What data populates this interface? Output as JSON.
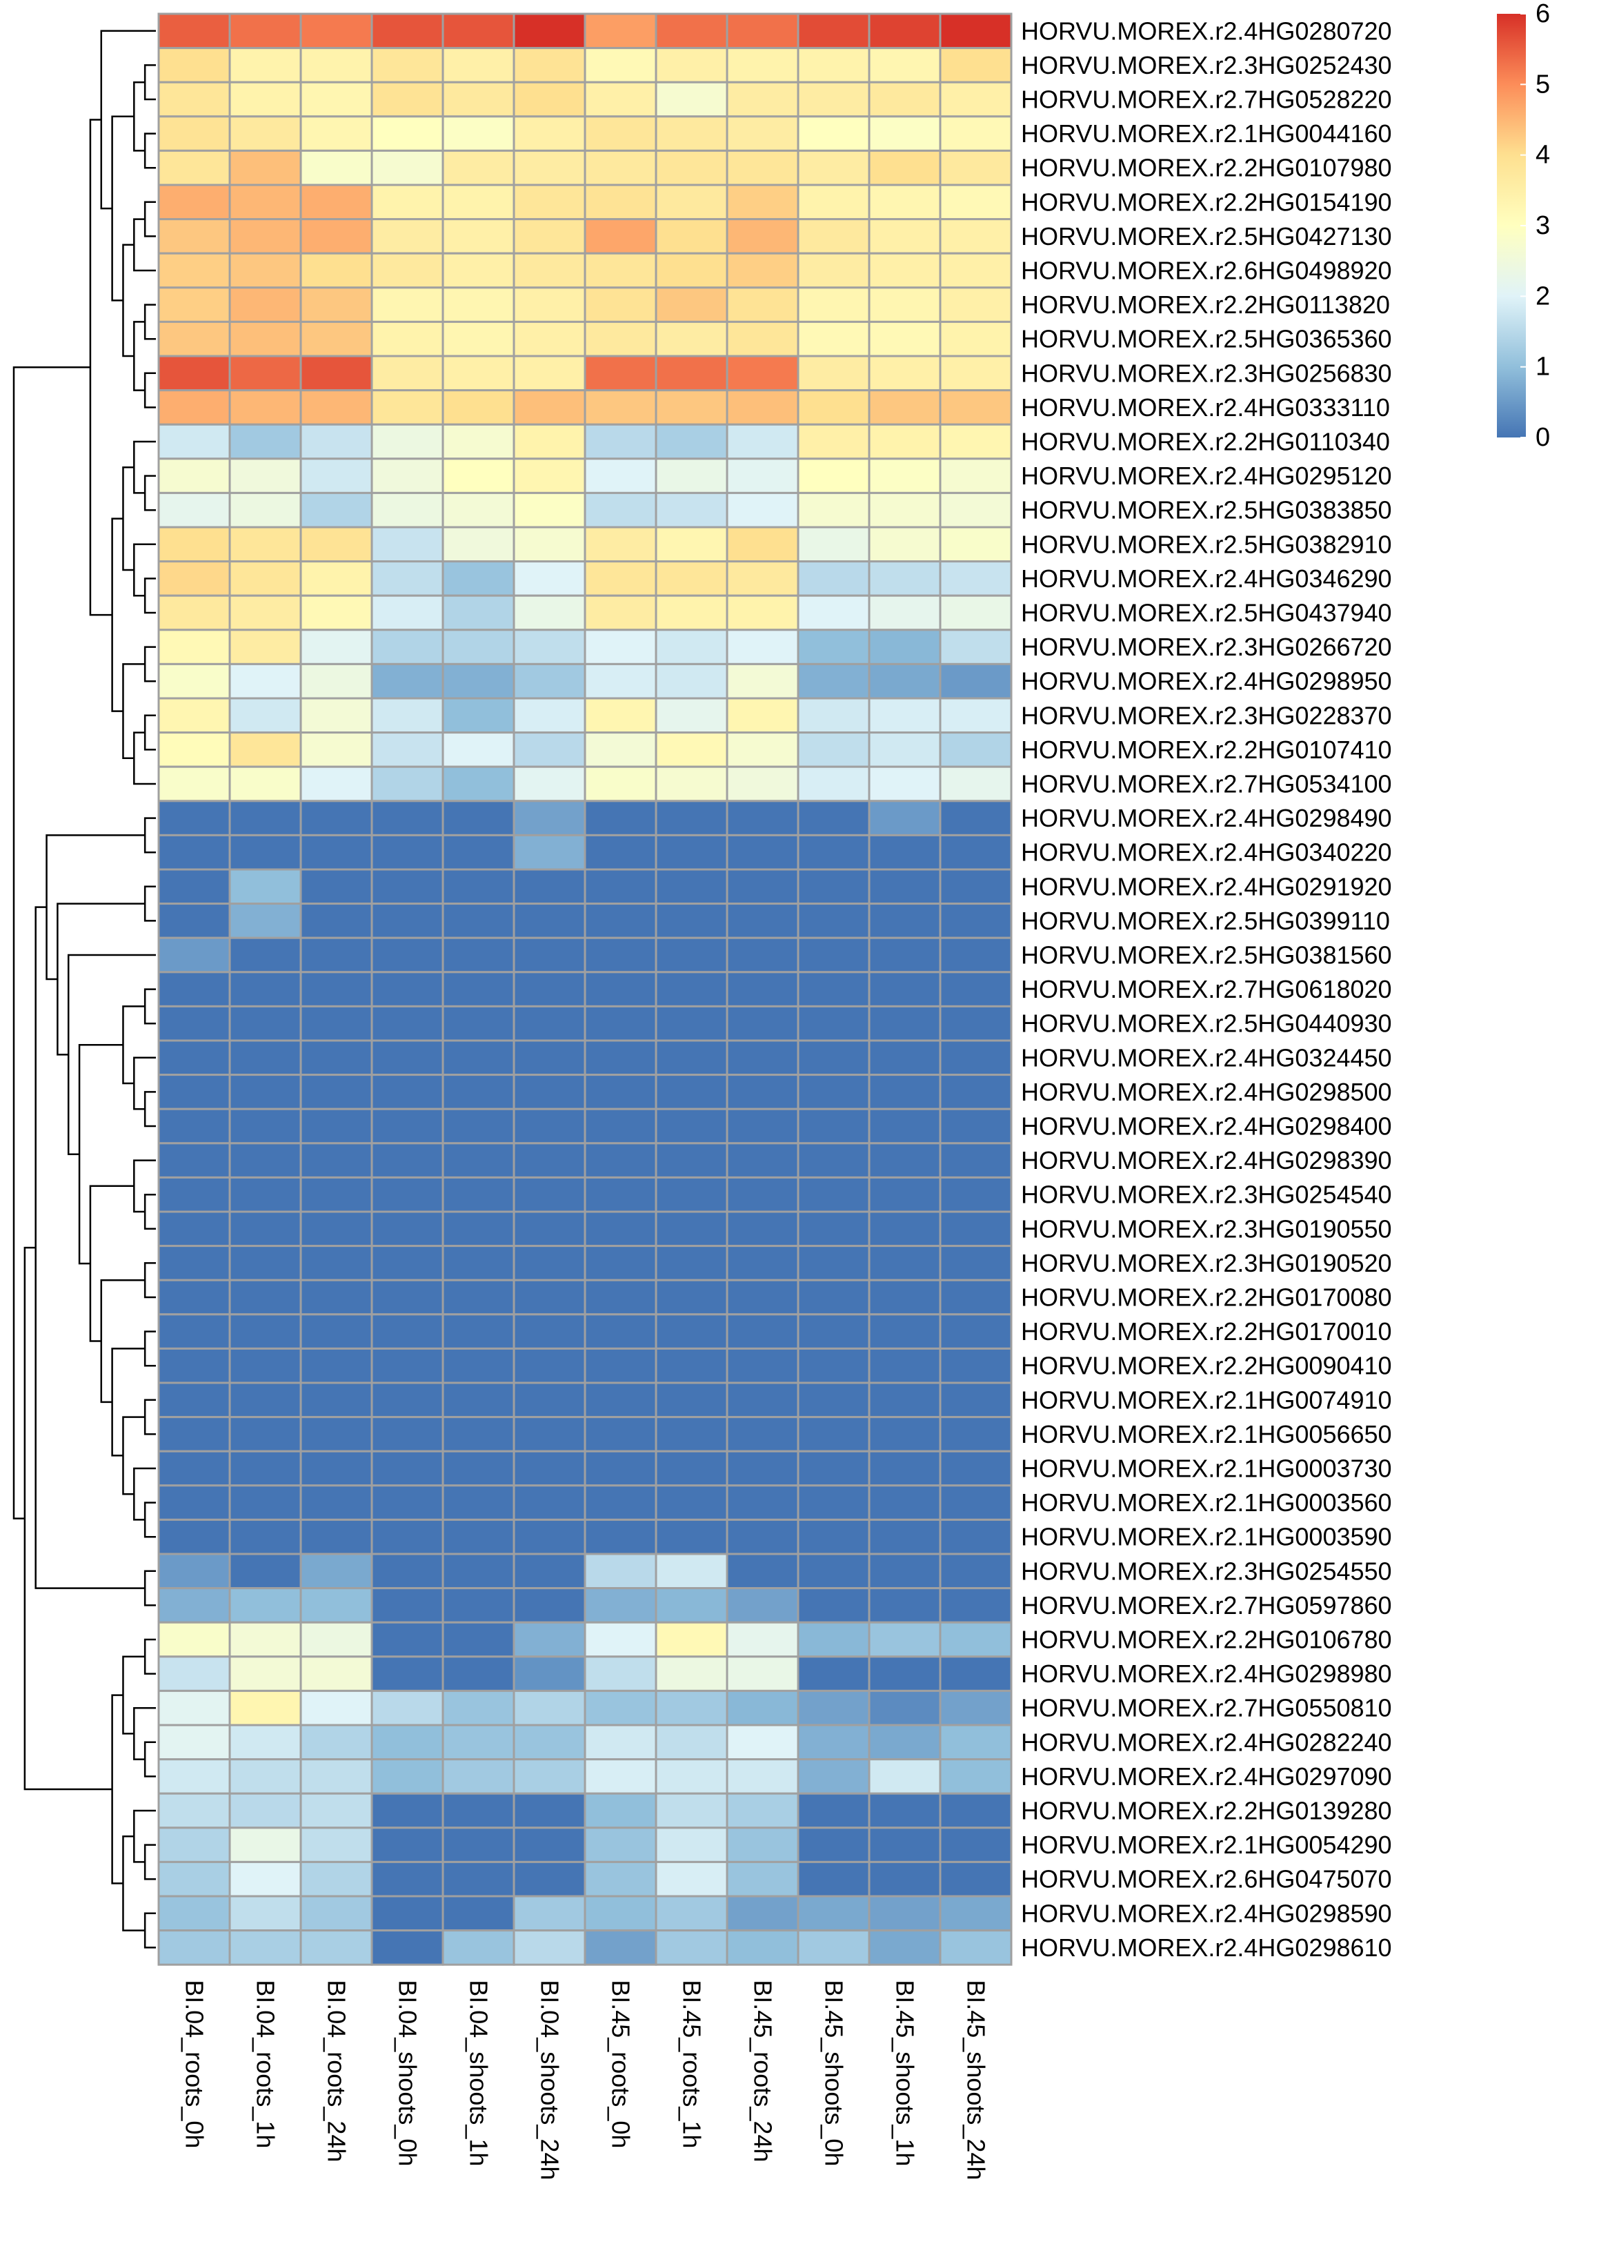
{
  "chart_data": {
    "type": "heatmap",
    "title": "",
    "columns": [
      "BI.04_roots_0h",
      "BI.04_roots_1h",
      "BI.04_roots_24h",
      "BI.04_shoots_0h",
      "BI.04_shoots_1h",
      "BI.04_shoots_24h",
      "BI.45_roots_0h",
      "BI.45_roots_1h",
      "BI.45_roots_24h",
      "BI.45_shoots_0h",
      "BI.45_shoots_1h",
      "BI.45_shoots_24h"
    ],
    "rows": [
      "HORVU.MOREX.r2.4HG0280720",
      "HORVU.MOREX.r2.3HG0252430",
      "HORVU.MOREX.r2.7HG0528220",
      "HORVU.MOREX.r2.1HG0044160",
      "HORVU.MOREX.r2.2HG0107980",
      "HORVU.MOREX.r2.2HG0154190",
      "HORVU.MOREX.r2.5HG0427130",
      "HORVU.MOREX.r2.6HG0498920",
      "HORVU.MOREX.r2.2HG0113820",
      "HORVU.MOREX.r2.5HG0365360",
      "HORVU.MOREX.r2.3HG0256830",
      "HORVU.MOREX.r2.4HG0333110",
      "HORVU.MOREX.r2.2HG0110340",
      "HORVU.MOREX.r2.4HG0295120",
      "HORVU.MOREX.r2.5HG0383850",
      "HORVU.MOREX.r2.5HG0382910",
      "HORVU.MOREX.r2.4HG0346290",
      "HORVU.MOREX.r2.5HG0437940",
      "HORVU.MOREX.r2.3HG0266720",
      "HORVU.MOREX.r2.4HG0298950",
      "HORVU.MOREX.r2.3HG0228370",
      "HORVU.MOREX.r2.2HG0107410",
      "HORVU.MOREX.r2.7HG0534100",
      "HORVU.MOREX.r2.4HG0298490",
      "HORVU.MOREX.r2.4HG0340220",
      "HORVU.MOREX.r2.4HG0291920",
      "HORVU.MOREX.r2.5HG0399110",
      "HORVU.MOREX.r2.5HG0381560",
      "HORVU.MOREX.r2.7HG0618020",
      "HORVU.MOREX.r2.5HG0440930",
      "HORVU.MOREX.r2.4HG0324450",
      "HORVU.MOREX.r2.4HG0298500",
      "HORVU.MOREX.r2.4HG0298400",
      "HORVU.MOREX.r2.4HG0298390",
      "HORVU.MOREX.r2.3HG0254540",
      "HORVU.MOREX.r2.3HG0190550",
      "HORVU.MOREX.r2.3HG0190520",
      "HORVU.MOREX.r2.2HG0170080",
      "HORVU.MOREX.r2.2HG0170010",
      "HORVU.MOREX.r2.2HG0090410",
      "HORVU.MOREX.r2.1HG0074910",
      "HORVU.MOREX.r2.1HG0056650",
      "HORVU.MOREX.r2.1HG0003730",
      "HORVU.MOREX.r2.1HG0003560",
      "HORVU.MOREX.r2.1HG0003590",
      "HORVU.MOREX.r2.3HG0254550",
      "HORVU.MOREX.r2.7HG0597860",
      "HORVU.MOREX.r2.2HG0106780",
      "HORVU.MOREX.r2.4HG0298980",
      "HORVU.MOREX.r2.7HG0550810",
      "HORVU.MOREX.r2.4HG0282240",
      "HORVU.MOREX.r2.4HG0297090",
      "HORVU.MOREX.r2.2HG0139280",
      "HORVU.MOREX.r2.1HG0054290",
      "HORVU.MOREX.r2.6HG0475070",
      "HORVU.MOREX.r2.4HG0298590",
      "HORVU.MOREX.r2.4HG0298610"
    ],
    "values": [
      [
        5.5,
        5.3,
        5.2,
        5.6,
        5.6,
        6.0,
        4.8,
        5.3,
        5.3,
        5.7,
        5.8,
        6.0
      ],
      [
        4.0,
        3.4,
        3.4,
        3.8,
        3.5,
        3.9,
        3.2,
        3.5,
        3.4,
        3.4,
        3.3,
        4.0
      ],
      [
        3.8,
        3.4,
        3.3,
        3.9,
        3.7,
        4.0,
        3.5,
        2.7,
        3.6,
        3.6,
        3.7,
        3.5
      ],
      [
        3.9,
        3.7,
        3.3,
        3.0,
        2.9,
        3.5,
        3.8,
        3.7,
        3.6,
        3.0,
        2.9,
        3.2
      ],
      [
        3.8,
        4.4,
        2.8,
        2.7,
        3.6,
        3.6,
        3.7,
        3.8,
        3.8,
        3.6,
        4.0,
        3.7
      ],
      [
        4.6,
        4.5,
        4.6,
        3.4,
        3.4,
        3.8,
        3.9,
        3.7,
        4.2,
        3.4,
        3.3,
        3.2
      ],
      [
        4.3,
        4.5,
        4.6,
        3.6,
        3.5,
        3.8,
        4.7,
        4.0,
        4.5,
        3.7,
        3.5,
        3.5
      ],
      [
        4.2,
        4.3,
        4.0,
        3.7,
        3.5,
        3.7,
        3.8,
        4.0,
        4.2,
        3.6,
        3.5,
        3.5
      ],
      [
        4.2,
        4.5,
        4.3,
        3.3,
        3.3,
        3.5,
        3.9,
        4.3,
        3.9,
        3.3,
        3.3,
        3.5
      ],
      [
        4.3,
        4.4,
        4.3,
        3.4,
        3.3,
        3.5,
        3.7,
        3.6,
        3.8,
        3.2,
        3.2,
        3.4
      ],
      [
        5.6,
        5.4,
        5.6,
        3.6,
        3.5,
        3.5,
        5.3,
        5.3,
        5.2,
        3.6,
        3.5,
        3.5
      ],
      [
        4.6,
        4.5,
        4.5,
        3.8,
        4.0,
        4.4,
        4.3,
        4.3,
        4.4,
        4.0,
        4.3,
        4.3
      ],
      [
        1.8,
        1.2,
        1.7,
        2.4,
        2.7,
        3.4,
        1.5,
        1.3,
        1.8,
        3.5,
        3.4,
        3.3
      ],
      [
        2.7,
        2.5,
        1.8,
        2.5,
        3.0,
        3.3,
        2.0,
        2.3,
        2.1,
        3.0,
        2.9,
        2.7
      ],
      [
        2.2,
        2.4,
        1.4,
        2.4,
        2.6,
        2.9,
        1.6,
        1.7,
        2.0,
        2.7,
        2.7,
        2.6
      ],
      [
        4.0,
        3.8,
        3.9,
        1.7,
        2.5,
        2.7,
        3.6,
        3.3,
        4.0,
        2.3,
        2.7,
        2.8
      ],
      [
        4.1,
        3.8,
        3.4,
        1.6,
        1.1,
        2.0,
        3.8,
        3.8,
        3.7,
        1.5,
        1.6,
        1.7
      ],
      [
        3.7,
        3.6,
        3.2,
        1.9,
        1.4,
        2.3,
        3.6,
        3.4,
        3.4,
        2.0,
        2.2,
        2.3
      ],
      [
        3.2,
        3.6,
        2.1,
        1.4,
        1.4,
        1.6,
        2.0,
        1.8,
        2.0,
        1.0,
        0.9,
        1.6
      ],
      [
        2.8,
        2.0,
        2.4,
        0.8,
        0.8,
        1.2,
        1.9,
        1.8,
        2.6,
        0.8,
        0.7,
        0.5
      ],
      [
        3.3,
        1.8,
        2.6,
        1.8,
        1.0,
        1.9,
        3.3,
        2.2,
        3.3,
        1.8,
        1.9,
        1.9
      ],
      [
        3.1,
        3.8,
        2.7,
        1.7,
        2.0,
        1.5,
        2.6,
        3.2,
        2.7,
        1.6,
        1.8,
        1.4
      ],
      [
        2.8,
        2.8,
        2.0,
        1.4,
        1.0,
        2.1,
        2.8,
        2.7,
        2.5,
        1.9,
        2.0,
        2.2
      ],
      [
        0,
        0,
        0,
        0,
        0,
        0.6,
        0,
        0,
        0,
        0,
        0.5,
        0
      ],
      [
        0,
        0,
        0,
        0,
        0,
        0.8,
        0,
        0,
        0,
        0,
        0,
        0
      ],
      [
        0,
        1.0,
        0,
        0,
        0,
        0,
        0,
        0,
        0,
        0,
        0,
        0
      ],
      [
        0,
        0.8,
        0,
        0,
        0,
        0,
        0,
        0,
        0,
        0,
        0,
        0
      ],
      [
        0.5,
        0,
        0,
        0,
        0,
        0,
        0,
        0,
        0,
        0,
        0,
        0
      ],
      [
        0,
        0,
        0,
        0,
        0,
        0,
        0,
        0,
        0,
        0,
        0,
        0
      ],
      [
        0,
        0,
        0,
        0,
        0,
        0,
        0,
        0,
        0,
        0,
        0,
        0
      ],
      [
        0,
        0,
        0,
        0,
        0,
        0,
        0,
        0,
        0,
        0,
        0,
        0
      ],
      [
        0,
        0,
        0,
        0,
        0,
        0,
        0,
        0,
        0,
        0,
        0,
        0
      ],
      [
        0,
        0,
        0,
        0,
        0,
        0,
        0,
        0,
        0,
        0,
        0,
        0
      ],
      [
        0,
        0,
        0,
        0,
        0,
        0,
        0,
        0,
        0,
        0,
        0,
        0
      ],
      [
        0,
        0,
        0,
        0,
        0,
        0,
        0,
        0,
        0,
        0,
        0,
        0
      ],
      [
        0,
        0,
        0,
        0,
        0,
        0,
        0,
        0,
        0,
        0,
        0,
        0
      ],
      [
        0,
        0,
        0,
        0,
        0,
        0,
        0,
        0,
        0,
        0,
        0,
        0
      ],
      [
        0,
        0,
        0,
        0,
        0,
        0,
        0,
        0,
        0,
        0,
        0,
        0
      ],
      [
        0,
        0,
        0,
        0,
        0,
        0,
        0,
        0,
        0,
        0,
        0,
        0
      ],
      [
        0,
        0,
        0,
        0,
        0,
        0,
        0,
        0,
        0,
        0,
        0,
        0
      ],
      [
        0,
        0,
        0,
        0,
        0,
        0,
        0,
        0,
        0,
        0,
        0,
        0
      ],
      [
        0,
        0,
        0,
        0,
        0,
        0,
        0,
        0,
        0,
        0,
        0,
        0
      ],
      [
        0,
        0,
        0,
        0,
        0,
        0,
        0,
        0,
        0,
        0,
        0,
        0
      ],
      [
        0,
        0,
        0,
        0,
        0,
        0,
        0,
        0,
        0,
        0,
        0,
        0
      ],
      [
        0,
        0,
        0,
        0,
        0,
        0,
        0,
        0,
        0,
        0,
        0,
        0
      ],
      [
        0.5,
        0,
        0.7,
        0,
        0,
        0,
        1.5,
        1.8,
        0,
        0,
        0,
        0
      ],
      [
        0.8,
        1.0,
        1.0,
        0,
        0,
        0,
        0.8,
        0.9,
        0.6,
        0,
        0,
        0
      ],
      [
        2.8,
        2.6,
        2.4,
        0,
        0,
        0.8,
        2.0,
        3.2,
        2.2,
        0.9,
        1.1,
        1.0
      ],
      [
        1.7,
        2.6,
        2.6,
        0,
        0,
        0.4,
        1.6,
        2.4,
        2.3,
        0,
        0,
        0
      ],
      [
        2.1,
        3.3,
        2.0,
        1.5,
        1.1,
        1.4,
        1.1,
        1.2,
        0.9,
        0.6,
        0.3,
        0.6
      ],
      [
        2.1,
        1.8,
        1.4,
        1.0,
        1.1,
        1.1,
        1.8,
        1.6,
        2.0,
        0.8,
        0.7,
        1.0
      ],
      [
        1.8,
        1.6,
        1.6,
        1.0,
        1.2,
        1.3,
        1.9,
        1.8,
        1.8,
        0.8,
        1.8,
        1.0
      ],
      [
        1.6,
        1.5,
        1.6,
        0,
        0,
        0,
        1.0,
        1.6,
        1.3,
        0,
        0,
        0
      ],
      [
        1.4,
        2.3,
        1.6,
        0,
        0,
        0,
        1.1,
        1.8,
        1.1,
        0,
        0,
        0
      ],
      [
        1.3,
        2.0,
        1.4,
        0,
        0,
        0,
        1.1,
        1.9,
        1.1,
        0,
        0,
        0
      ],
      [
        1.1,
        1.6,
        1.2,
        0,
        0,
        1.2,
        1.0,
        1.2,
        0.6,
        0.7,
        0.6,
        0.7
      ],
      [
        1.2,
        1.3,
        1.3,
        0,
        1.1,
        1.5,
        0.6,
        1.2,
        1.0,
        1.2,
        0.7,
        1.1
      ]
    ],
    "legend": {
      "min": 0,
      "max": 6,
      "ticks": [
        "0",
        "1",
        "2",
        "3",
        "4",
        "5",
        "6"
      ]
    },
    "colors": {
      "palette": [
        "#4575B4",
        "#91BFDB",
        "#E0F3F8",
        "#FFFFBF",
        "#FEE090",
        "#FC8D59",
        "#D73027"
      ],
      "cell_border": "#A0A0A0",
      "dendrogram": "#000000"
    },
    "row_dendrogram": "[[[0,[[[1,2],[3,4]],[[[5,6],7],[[8,9],[10,11]]]]],[[[12,[13,14]],[15,[16,17]]],[[18,19],[[20,21],22]]]],[[[[23,24],[[25,26],[27,[[[28,29],[30,[31,32]]],[[33,[34,35]],[[36,37],[[38,39],[[40,41],[42,[43,44]]]]]]]]]],[45,46]],[[[47,48],[49,[50,51]]],[[52,[53,54]],[55,56]]]]]"
  }
}
